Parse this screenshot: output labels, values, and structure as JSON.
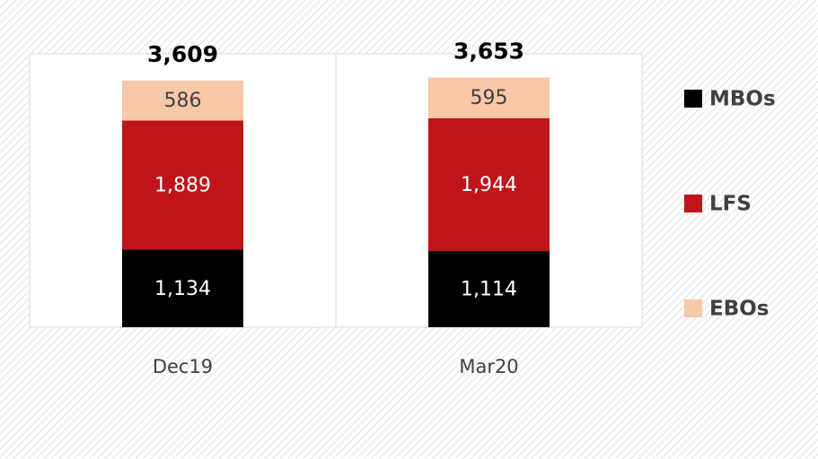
{
  "chart_data": {
    "type": "stacked_bar",
    "categories": [
      "Dec19",
      "Mar20"
    ],
    "series": [
      {
        "name": "MBOs",
        "color": "#000000",
        "label_color": "#ffffff",
        "values": [
          1134,
          1114
        ],
        "value_labels": [
          "1,134",
          "1,114"
        ]
      },
      {
        "name": "LFS",
        "color": "#c0141a",
        "label_color": "#ffffff",
        "values": [
          1889,
          1944
        ],
        "value_labels": [
          "1,889",
          "1,944"
        ]
      },
      {
        "name": "EBOs",
        "color": "#f8c8a8",
        "label_color": "#404040",
        "values": [
          586,
          595
        ],
        "value_labels": [
          "586",
          "595"
        ]
      }
    ],
    "total_labels": [
      "3,609",
      "3,653"
    ],
    "ylim": [
      0,
      4000
    ],
    "legend": "right"
  }
}
